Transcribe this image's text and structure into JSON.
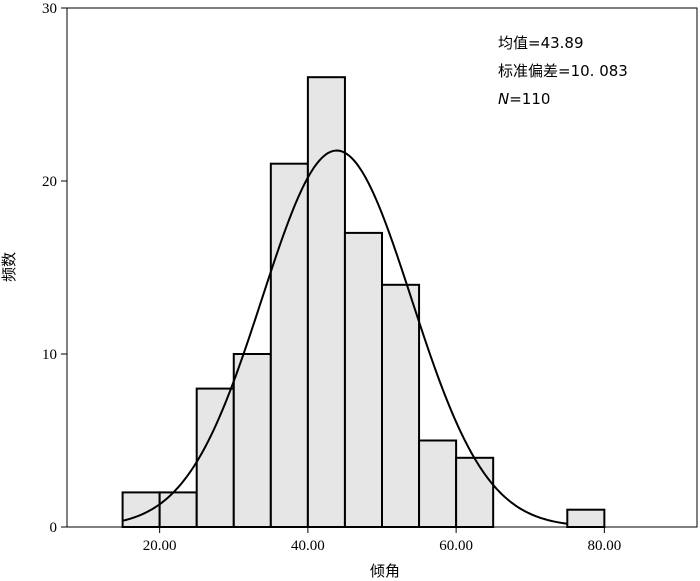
{
  "chart_data": {
    "type": "bar",
    "subtype": "histogram-with-normal-curve",
    "xlabel": "倾角",
    "ylabel": "频数",
    "xlim": [
      7.5,
      92.5
    ],
    "ylim": [
      0,
      30
    ],
    "x_ticks": [
      20,
      40,
      60,
      80
    ],
    "x_tick_labels": [
      "20.00",
      "40.00",
      "60.00",
      "80.00"
    ],
    "y_ticks": [
      0,
      10,
      20,
      30
    ],
    "y_tick_labels": [
      "0",
      "10",
      "20",
      "30"
    ],
    "bin_width": 5,
    "bins": [
      {
        "start": 15,
        "end": 20,
        "count": 2
      },
      {
        "start": 20,
        "end": 25,
        "count": 2
      },
      {
        "start": 25,
        "end": 30,
        "count": 8
      },
      {
        "start": 30,
        "end": 35,
        "count": 10
      },
      {
        "start": 35,
        "end": 40,
        "count": 21
      },
      {
        "start": 40,
        "end": 45,
        "count": 26
      },
      {
        "start": 45,
        "end": 50,
        "count": 17
      },
      {
        "start": 50,
        "end": 55,
        "count": 14
      },
      {
        "start": 55,
        "end": 60,
        "count": 5
      },
      {
        "start": 60,
        "end": 65,
        "count": 4
      },
      {
        "start": 75,
        "end": 80,
        "count": 1
      }
    ],
    "normal_curve": {
      "mean": 43.89,
      "sd": 10.083,
      "n": 110
    },
    "bar_fill": "#e6e6e6",
    "bar_stroke": "#000000",
    "curve_color": "#000000",
    "grid": false,
    "legend": "none",
    "stats": {
      "mean_label": "均值=43.89",
      "sd_label": "标准偏差=10. 083",
      "n_symbol": "N",
      "n_value": "=110"
    }
  }
}
